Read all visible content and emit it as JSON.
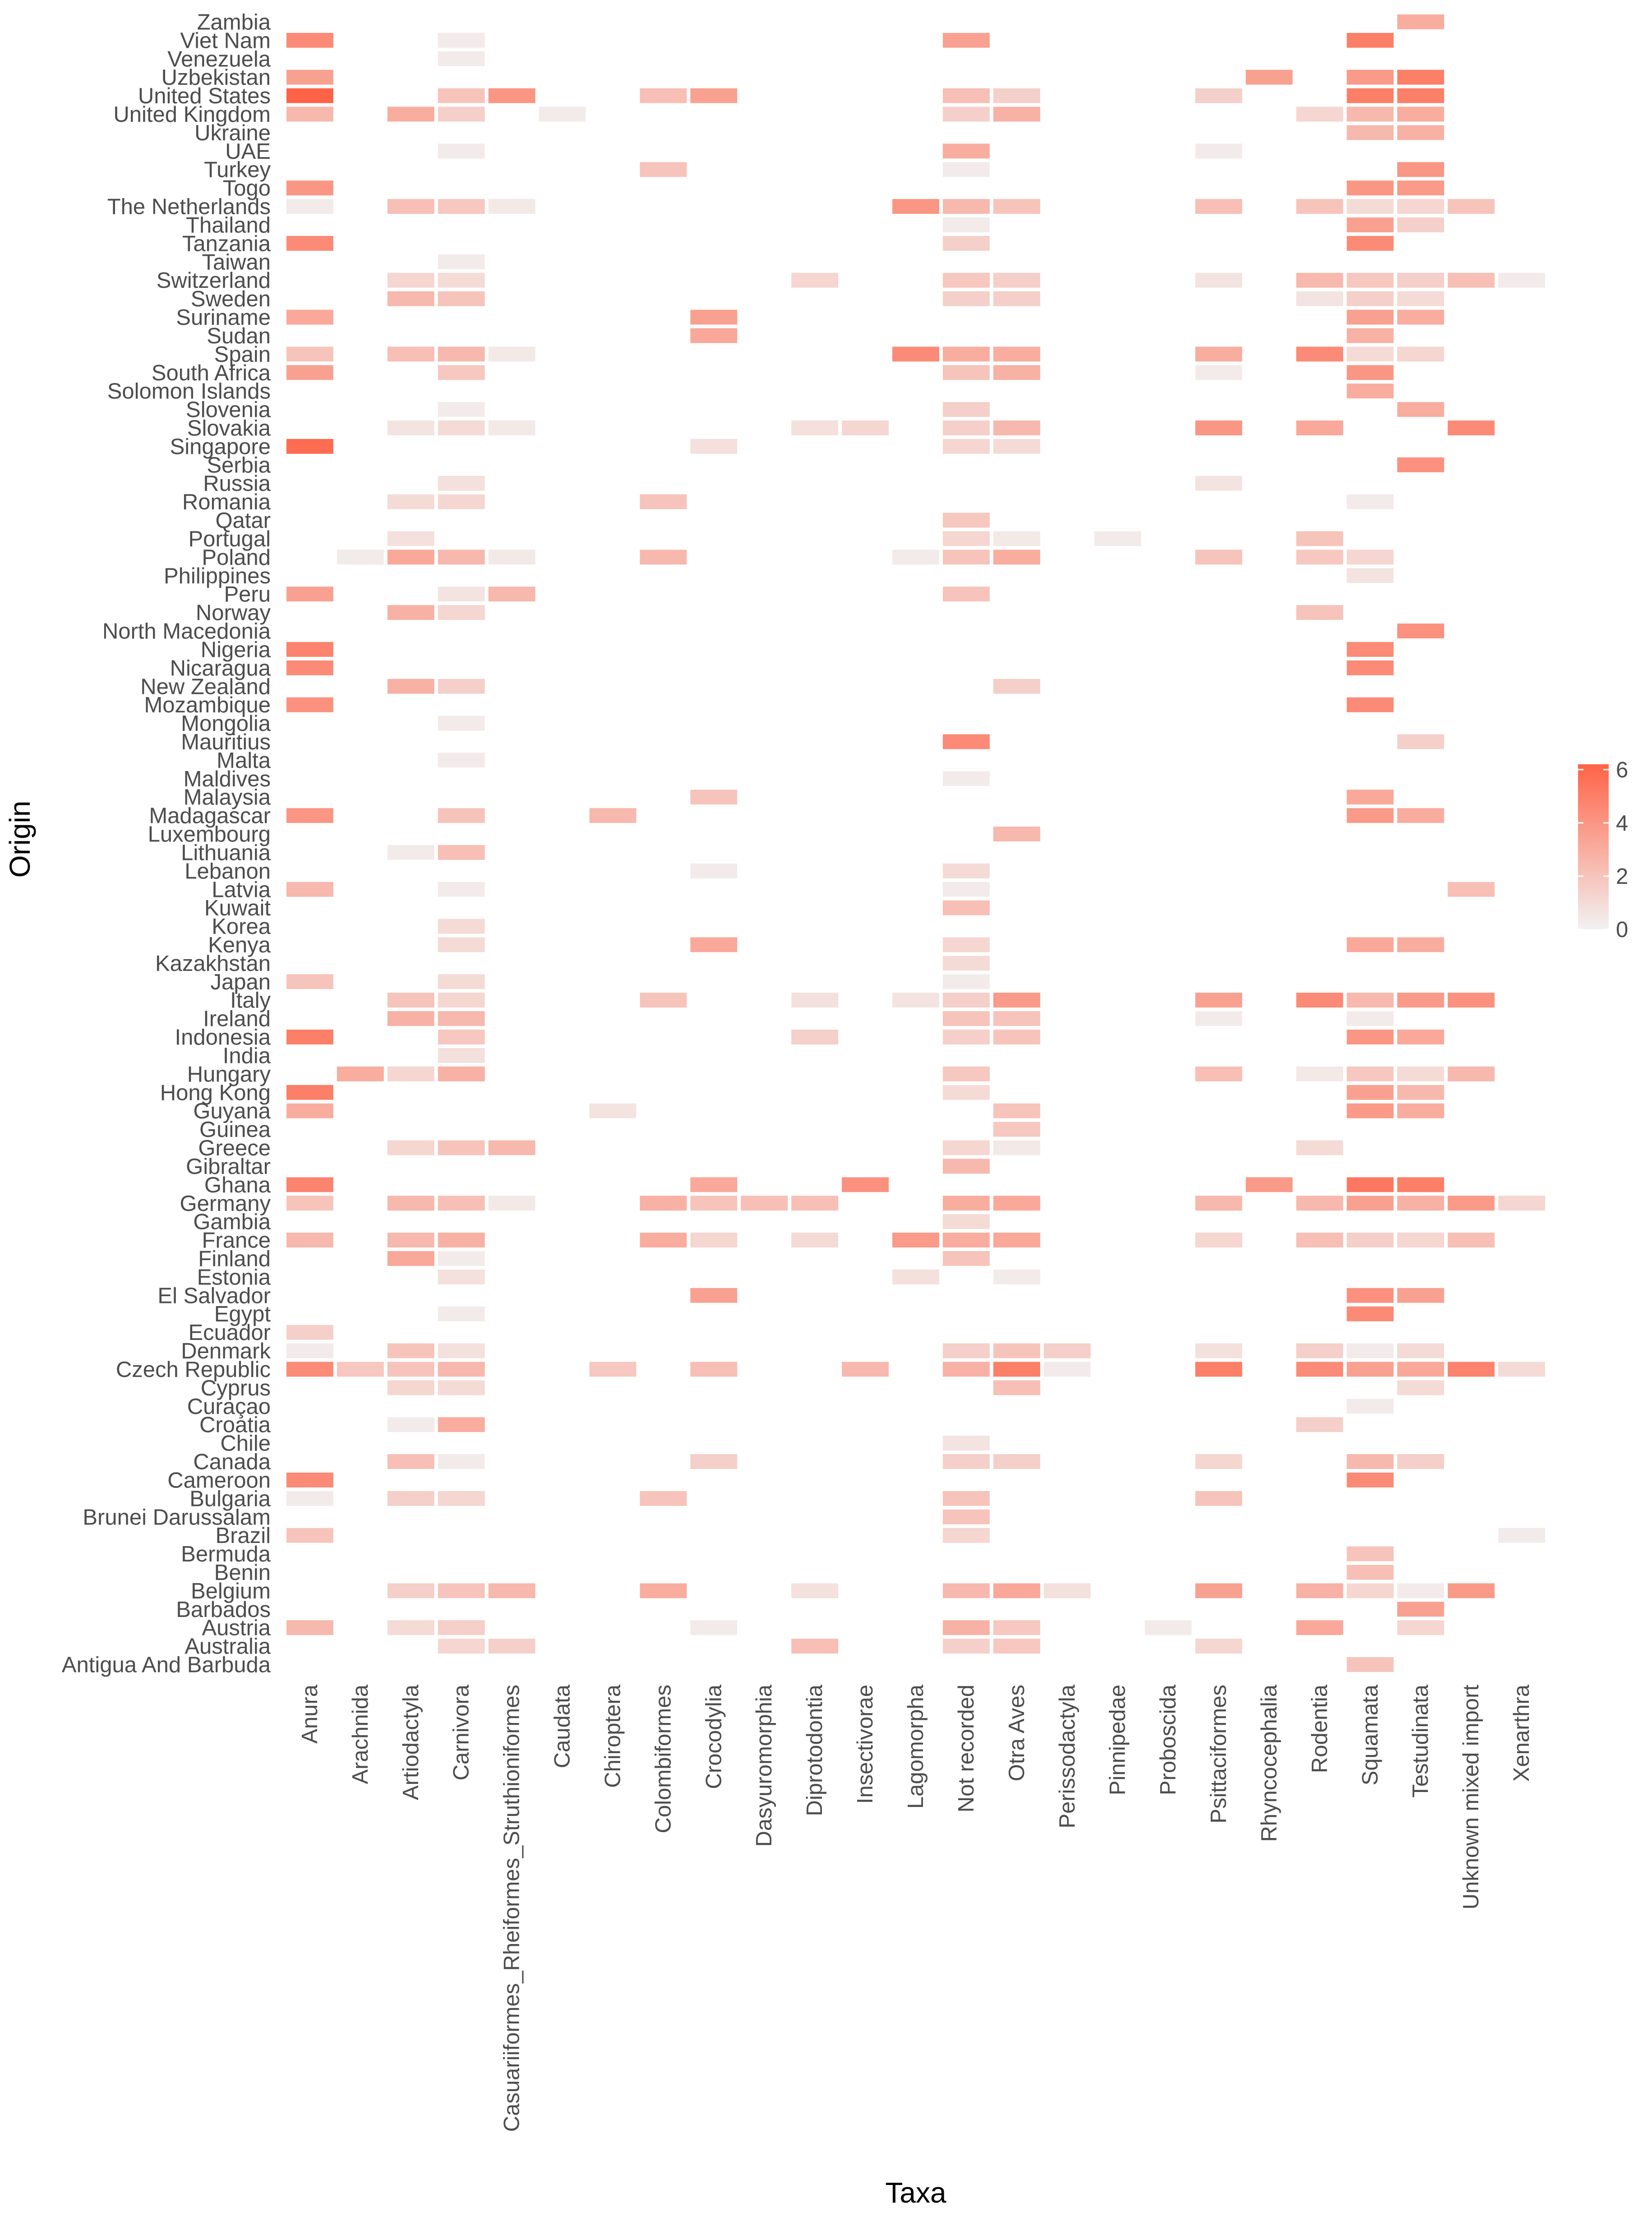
{
  "chart_data": {
    "type": "heatmap",
    "title": "",
    "xlabel": "Taxa",
    "ylabel": "Origin",
    "x_categories": [
      "Anura",
      "Arachnida",
      "Artiodactyla",
      "Carnivora",
      "Casuariiformes_Rheiformes_Struthioniformes",
      "Caudata",
      "Chiroptera",
      "Colombiformes",
      "Crocodylia",
      "Dasyuromorphia",
      "Diprotodontia",
      "Insectivorae",
      "Lagomorpha",
      "Not recorded",
      "Otra Aves",
      "Perissodactyla",
      "Pinnipedae",
      "Proboscida",
      "Psittaciformes",
      "Rhyncocephalia",
      "Rodentia",
      "Squamata",
      "Testudinata",
      "Unknown mixed import",
      "Xenarthra"
    ],
    "y_categories": [
      "Zambia",
      "Viet Nam",
      "Venezuela",
      "Uzbekistan",
      "United States",
      "United Kingdom",
      "Ukraine",
      "UAE",
      "Turkey",
      "Togo",
      "The Netherlands",
      "Thailand",
      "Tanzania",
      "Taiwan",
      "Switzerland",
      "Sweden",
      "Suriname",
      "Sudan",
      "Spain",
      "South Africa",
      "Solomon Islands",
      "Slovenia",
      "Slovakia",
      "Singapore",
      "Serbia",
      "Russia",
      "Romania",
      "Qatar",
      "Portugal",
      "Poland",
      "Philippines",
      "Peru",
      "Norway",
      "North Macedonia",
      "Nigeria",
      "Nicaragua",
      "New Zealand",
      "Mozambique",
      "Mongolia",
      "Mauritius",
      "Malta",
      "Maldives",
      "Malaysia",
      "Madagascar",
      "Luxembourg",
      "Lithuania",
      "Lebanon",
      "Latvia",
      "Kuwait",
      "Korea",
      "Kenya",
      "Kazakhstan",
      "Japan",
      "Italy",
      "Ireland",
      "Indonesia",
      "India",
      "Hungary",
      "Hong Kong",
      "Guyana",
      "Guinea",
      "Greece",
      "Gibraltar",
      "Ghana",
      "Germany",
      "Gambia",
      "France",
      "Finland",
      "Estonia",
      "El Salvador",
      "Egypt",
      "Ecuador",
      "Denmark",
      "Czech Republic",
      "Cyprus",
      "Curaçao",
      "Croatia",
      "Chile",
      "Canada",
      "Cameroon",
      "Bulgaria",
      "Brunei Darussalam",
      "Brazil",
      "Bermuda",
      "Benin",
      "Belgium",
      "Barbados",
      "Austria",
      "Australia",
      "Antigua And Barbuda"
    ],
    "cells": {
      "Zambia": {
        "Testudinata": 3
      },
      "Viet Nam": {
        "Anura": 4.5,
        "Carnivora": 0.3,
        "Not recorded": 3.5,
        "Squamata": 5
      },
      "Venezuela": {
        "Carnivora": 0.3
      },
      "Uzbekistan": {
        "Anura": 3.5,
        "Rhyncocephalia": 3.5,
        "Squamata": 3.8,
        "Testudinata": 5
      },
      "United States": {
        "Anura": 6.2,
        "Carnivora": 2,
        "Casuariiformes_Rheiformes_Struthioniformes": 4,
        "Colombiformes": 2.2,
        "Crocodylia": 3.5,
        "Not recorded": 2.2,
        "Otra Aves": 1.5,
        "Psittaciformes": 1.5,
        "Squamata": 5,
        "Testudinata": 5
      },
      "United Kingdom": {
        "Anura": 2.5,
        "Artiodactyla": 3,
        "Carnivora": 1.5,
        "Caudata": 0.3,
        "Not recorded": 1.5,
        "Otra Aves": 2.8,
        "Rodentia": 1.2,
        "Squamata": 2.5,
        "Testudinata": 3
      },
      "Ukraine": {
        "Squamata": 2.5,
        "Testudinata": 2.8
      },
      "UAE": {
        "Carnivora": 0.3,
        "Not recorded": 3,
        "Psittaciformes": 0.3
      },
      "Turkey": {
        "Colombiformes": 2,
        "Not recorded": 0.3,
        "Testudinata": 4
      },
      "Togo": {
        "Anura": 4,
        "Squamata": 4,
        "Testudinata": 3.8
      },
      "The Netherlands": {
        "Anura": 0.3,
        "Artiodactyla": 2.2,
        "Carnivora": 1.8,
        "Casuariiformes_Rheiformes_Struthioniformes": 0.4,
        "Lagomorpha": 4,
        "Not recorded": 2.5,
        "Otra Aves": 2,
        "Psittaciformes": 2.2,
        "Rodentia": 2,
        "Squamata": 1,
        "Testudinata": 1.2,
        "Unknown mixed import": 2
      },
      "Thailand": {
        "Not recorded": 0.3,
        "Squamata": 3.5,
        "Testudinata": 1.5
      },
      "Tanzania": {
        "Anura": 4.5,
        "Not recorded": 1.5,
        "Squamata": 4.5
      },
      "Taiwan": {
        "Carnivora": 0.3
      },
      "Switzerland": {
        "Artiodactyla": 1.2,
        "Carnivora": 1,
        "Diprotodontia": 1.2,
        "Not recorded": 1.8,
        "Otra Aves": 1.5,
        "Psittaciformes": 0.6,
        "Rodentia": 2.5,
        "Squamata": 1.8,
        "Testudinata": 1.5,
        "Unknown mixed import": 2.2,
        "Xenarthra": 0.3
      },
      "Sweden": {
        "Artiodactyla": 2.5,
        "Carnivora": 2,
        "Not recorded": 1.5,
        "Otra Aves": 1.5,
        "Rodentia": 0.6,
        "Squamata": 1.5,
        "Testudinata": 1
      },
      "Suriname": {
        "Anura": 3.2,
        "Crocodylia": 3.5,
        "Squamata": 3.5,
        "Testudinata": 3
      },
      "Sudan": {
        "Crocodylia": 3.2,
        "Squamata": 2.8
      },
      "Spain": {
        "Anura": 2,
        "Artiodactyla": 2.2,
        "Carnivora": 2.5,
        "Casuariiformes_Rheiformes_Struthioniformes": 0.4,
        "Lagomorpha": 4.5,
        "Not recorded": 3,
        "Otra Aves": 3,
        "Psittaciformes": 3,
        "Rodentia": 4.5,
        "Squamata": 1,
        "Testudinata": 1.2
      },
      "South Africa": {
        "Anura": 3.5,
        "Carnivora": 1.8,
        "Not recorded": 2,
        "Otra Aves": 2.8,
        "Psittaciformes": 0.3,
        "Squamata": 4
      },
      "Solomon Islands": {
        "Squamata": 3
      },
      "Slovenia": {
        "Carnivora": 0.3,
        "Not recorded": 1.5,
        "Testudinata": 3
      },
      "Slovakia": {
        "Artiodactyla": 0.6,
        "Carnivora": 1,
        "Casuariiformes_Rheiformes_Struthioniformes": 0.4,
        "Diprotodontia": 0.8,
        "Insectivorae": 1.2,
        "Not recorded": 1.5,
        "Otra Aves": 2.5,
        "Psittaciformes": 4,
        "Rodentia": 3.2,
        "Unknown mixed import": 4.5
      },
      "Singapore": {
        "Anura": 5.8,
        "Crocodylia": 0.8,
        "Not recorded": 1.2,
        "Otra Aves": 1
      },
      "Serbia": {
        "Testudinata": 4.2
      },
      "Russia": {
        "Carnivora": 0.8,
        "Psittaciformes": 0.6
      },
      "Romania": {
        "Artiodactyla": 1,
        "Carnivora": 1.2,
        "Colombiformes": 2,
        "Squamata": 0.3
      },
      "Qatar": {
        "Not recorded": 1.8
      },
      "Portugal": {
        "Artiodactyla": 0.8,
        "Not recorded": 1.2,
        "Otra Aves": 0.4,
        "Pinnipedae": 0.3,
        "Rodentia": 2
      },
      "Poland": {
        "Arachnida": 0.3,
        "Artiodactyla": 3.2,
        "Carnivora": 2.5,
        "Casuariiformes_Rheiformes_Struthioniformes": 0.4,
        "Colombiformes": 2.5,
        "Lagomorpha": 0.3,
        "Not recorded": 2,
        "Otra Aves": 3,
        "Psittaciformes": 2,
        "Rodentia": 1.8,
        "Squamata": 1.2
      },
      "Philippines": {
        "Squamata": 0.6
      },
      "Peru": {
        "Anura": 3.5,
        "Carnivora": 0.6,
        "Casuariiformes_Rheiformes_Struthioniformes": 2.5,
        "Not recorded": 2
      },
      "Norway": {
        "Artiodactyla": 2.8,
        "Carnivora": 1.2,
        "Rodentia": 2
      },
      "North Macedonia": {
        "Testudinata": 4.2
      },
      "Nigeria": {
        "Anura": 4.8,
        "Squamata": 4.5
      },
      "Nicaragua": {
        "Anura": 4.5,
        "Squamata": 4.5
      },
      "New Zealand": {
        "Artiodactyla": 2.8,
        "Carnivora": 1.5,
        "Otra Aves": 1.5
      },
      "Mozambique": {
        "Anura": 4.2,
        "Squamata": 4.5
      },
      "Mongolia": {
        "Carnivora": 0.3
      },
      "Mauritius": {
        "Not recorded": 4.5,
        "Testudinata": 1.5
      },
      "Malta": {
        "Carnivora": 0.3
      },
      "Maldives": {
        "Not recorded": 0.3
      },
      "Malaysia": {
        "Crocodylia": 2,
        "Squamata": 3.2
      },
      "Madagascar": {
        "Anura": 4,
        "Carnivora": 2,
        "Chiroptera": 2.5,
        "Squamata": 3.8,
        "Testudinata": 3
      },
      "Luxembourg": {
        "Otra Aves": 2.5
      },
      "Lithuania": {
        "Artiodactyla": 0.3,
        "Carnivora": 2.2
      },
      "Lebanon": {
        "Crocodylia": 0.3,
        "Not recorded": 1
      },
      "Latvia": {
        "Anura": 2.5,
        "Carnivora": 0.3,
        "Not recorded": 0.3,
        "Unknown mixed import": 2.2
      },
      "Kuwait": {
        "Not recorded": 2.2
      },
      "Korea": {
        "Carnivora": 1
      },
      "Kenya": {
        "Carnivora": 1,
        "Crocodylia": 3.2,
        "Not recorded": 1.2,
        "Squamata": 3.2,
        "Testudinata": 3
      },
      "Kazakhstan": {
        "Not recorded": 1
      },
      "Japan": {
        "Anura": 2,
        "Carnivora": 1,
        "Not recorded": 0.3
      },
      "Italy": {
        "Artiodactyla": 2,
        "Carnivora": 1.2,
        "Colombiformes": 2,
        "Diprotodontia": 0.8,
        "Lagomorpha": 0.6,
        "Not recorded": 1.5,
        "Otra Aves": 3.8,
        "Psittaciformes": 3.5,
        "Rodentia": 4.5,
        "Squamata": 2.5,
        "Testudinata": 3.8,
        "Unknown mixed import": 4.2
      },
      "Ireland": {
        "Artiodactyla": 2.8,
        "Carnivora": 2.5,
        "Not recorded": 2,
        "Otra Aves": 2,
        "Psittaciformes": 0.3,
        "Squamata": 0.3
      },
      "Indonesia": {
        "Anura": 5,
        "Carnivora": 1.8,
        "Diprotodontia": 1.5,
        "Not recorded": 1.5,
        "Otra Aves": 2,
        "Squamata": 4,
        "Testudinata": 3.2
      },
      "India": {
        "Carnivora": 0.8
      },
      "Hungary": {
        "Arachnida": 3,
        "Artiodactyla": 1.2,
        "Carnivora": 2.8,
        "Not recorded": 1.8,
        "Psittaciformes": 2.2,
        "Rodentia": 0.4,
        "Squamata": 1.8,
        "Testudinata": 1,
        "Unknown mixed import": 2.5
      },
      "Hong Kong": {
        "Anura": 5,
        "Not recorded": 1,
        "Squamata": 3.5,
        "Testudinata": 2.5
      },
      "Guyana": {
        "Anura": 3,
        "Chiroptera": 0.6,
        "Otra Aves": 2,
        "Squamata": 3.8,
        "Testudinata": 3
      },
      "Guinea": {
        "Otra Aves": 1.8
      },
      "Greece": {
        "Artiodactyla": 1.2,
        "Carnivora": 2,
        "Casuariiformes_Rheiformes_Struthioniformes": 2.5,
        "Not recorded": 1.2,
        "Otra Aves": 0.4,
        "Rodentia": 1
      },
      "Gibraltar": {
        "Not recorded": 2.5
      },
      "Ghana": {
        "Anura": 4.8,
        "Crocodylia": 3.2,
        "Insectivorae": 4.2,
        "Rhyncocephalia": 3.8,
        "Squamata": 5.3,
        "Testudinata": 5
      },
      "Germany": {
        "Anura": 2,
        "Artiodactyla": 2.5,
        "Carnivora": 2.2,
        "Casuariiformes_Rheiformes_Struthioniformes": 0.4,
        "Colombiformes": 2.8,
        "Crocodylia": 2,
        "Dasyuromorphia": 2.2,
        "Diprotodontia": 2.2,
        "Not recorded": 3,
        "Otra Aves": 3.2,
        "Psittaciformes": 2.5,
        "Rodentia": 2.5,
        "Squamata": 3.5,
        "Testudinata": 2.8,
        "Unknown mixed import": 3.8,
        "Xenarthra": 1.2
      },
      "Gambia": {
        "Not recorded": 1
      },
      "France": {
        "Anura": 2.5,
        "Artiodactyla": 2.5,
        "Carnivora": 2.8,
        "Colombiformes": 3,
        "Crocodylia": 1.2,
        "Diprotodontia": 1,
        "Lagomorpha": 3.8,
        "Not recorded": 3,
        "Otra Aves": 3.2,
        "Psittaciformes": 1.2,
        "Rodentia": 2.2,
        "Squamata": 1.5,
        "Testudinata": 1.2,
        "Unknown mixed import": 2.2
      },
      "Finland": {
        "Artiodactyla": 3.2,
        "Carnivora": 0.3,
        "Not recorded": 2
      },
      "Estonia": {
        "Carnivora": 0.8,
        "Lagomorpha": 0.8,
        "Otra Aves": 0.3
      },
      "El Salvador": {
        "Crocodylia": 3.5,
        "Squamata": 4.2,
        "Testudinata": 3.5
      },
      "Egypt": {
        "Carnivora": 0.3,
        "Squamata": 4.5
      },
      "Ecuador": {
        "Anura": 1.5
      },
      "Denmark": {
        "Anura": 0.3,
        "Artiodactyla": 2,
        "Carnivora": 0.8,
        "Not recorded": 1.5,
        "Otra Aves": 2,
        "Perissodactyla": 1.5,
        "Psittaciformes": 0.8,
        "Rodentia": 1.5,
        "Squamata": 0.3,
        "Testudinata": 1
      },
      "Czech Republic": {
        "Anura": 4.5,
        "Arachnida": 1.8,
        "Artiodactyla": 2,
        "Carnivora": 2.5,
        "Chiroptera": 1.8,
        "Crocodylia": 2.2,
        "Insectivorae": 2.5,
        "Not recorded": 2.8,
        "Otra Aves": 5,
        "Perissodactyla": 0.3,
        "Psittaciformes": 5,
        "Rodentia": 4.5,
        "Squamata": 3.5,
        "Testudinata": 3.2,
        "Unknown mixed import": 4.8,
        "Xenarthra": 1
      },
      "Cyprus": {
        "Artiodactyla": 1.2,
        "Carnivora": 1,
        "Otra Aves": 2.2,
        "Testudinata": 1
      },
      "Curaçao": {
        "Squamata": 0.3
      },
      "Croatia": {
        "Artiodactyla": 0.3,
        "Carnivora": 3,
        "Rodentia": 1.5
      },
      "Chile": {
        "Not recorded": 0.6
      },
      "Canada": {
        "Artiodactyla": 2.2,
        "Carnivora": 0.3,
        "Crocodylia": 1.5,
        "Not recorded": 1.5,
        "Otra Aves": 1.5,
        "Psittaciformes": 1.2,
        "Squamata": 2.5,
        "Testudinata": 1.5
      },
      "Cameroon": {
        "Anura": 4.5,
        "Squamata": 4.5
      },
      "Bulgaria": {
        "Anura": 0.3,
        "Artiodactyla": 1.5,
        "Carnivora": 1.2,
        "Colombiformes": 2,
        "Not recorded": 2,
        "Psittaciformes": 2
      },
      "Brunei Darussalam": {
        "Not recorded": 2
      },
      "Brazil": {
        "Anura": 2,
        "Not recorded": 1.2,
        "Xenarthra": 0.3
      },
      "Bermuda": {
        "Squamata": 2
      },
      "Benin": {
        "Squamata": 2.2
      },
      "Belgium": {
        "Artiodactyla": 1.5,
        "Carnivora": 2,
        "Casuariiformes_Rheiformes_Struthioniformes": 2.5,
        "Colombiformes": 3,
        "Diprotodontia": 0.8,
        "Not recorded": 2.5,
        "Otra Aves": 3.2,
        "Perissodactyla": 0.8,
        "Psittaciformes": 3.5,
        "Rodentia": 2.8,
        "Squamata": 1.2,
        "Testudinata": 0.3,
        "Unknown mixed import": 3.8
      },
      "Barbados": {
        "Testudinata": 3.5
      },
      "Austria": {
        "Anura": 2.5,
        "Artiodactyla": 1,
        "Carnivora": 1.5,
        "Crocodylia": 0.3,
        "Not recorded": 2.8,
        "Otra Aves": 1.8,
        "Proboscida": 0.3,
        "Rodentia": 3.2,
        "Testudinata": 1.2
      },
      "Australia": {
        "Carnivora": 1.2,
        "Casuariiformes_Rheiformes_Struthioniformes": 1.5,
        "Diprotodontia": 2.2,
        "Not recorded": 1.5,
        "Otra Aves": 1.8,
        "Psittaciformes": 1.2
      },
      "Antigua And Barbuda": {
        "Squamata": 2
      }
    },
    "color_scale": {
      "low": "#f2f2f2",
      "high": "#ff6347",
      "min": 0,
      "max": 6.2
    },
    "legend": {
      "title": "",
      "ticks": [
        "6",
        "4",
        "2",
        "0"
      ],
      "tick_values": [
        6,
        4,
        2,
        0
      ],
      "placement": "right"
    }
  }
}
